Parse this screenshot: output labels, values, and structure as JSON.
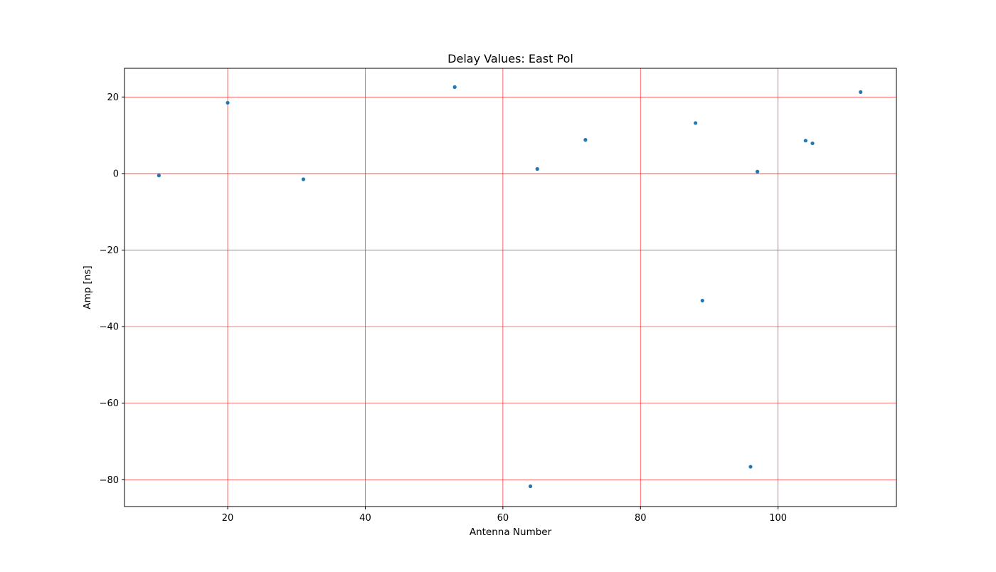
{
  "colors": {
    "marker": "#1f77b4",
    "grid": "#ff0000",
    "axes": "#000000",
    "background": "#ffffff"
  },
  "chart_data": {
    "type": "scatter",
    "title": "Delay Values: East Pol",
    "xlabel": "Antenna Number",
    "ylabel": "Amp [ns]",
    "xlim": [
      5,
      117.2
    ],
    "ylim": [
      -87,
      27.5
    ],
    "xticks": [
      20,
      40,
      60,
      80,
      100
    ],
    "yticks": [
      20,
      0,
      -20,
      -40,
      -60,
      -80
    ],
    "xtick_labels": [
      "20",
      "40",
      "60",
      "80",
      "100"
    ],
    "ytick_labels": [
      "20",
      "0",
      "−20",
      "−40",
      "−60",
      "−80"
    ],
    "grid": true,
    "points": [
      {
        "x": 10,
        "y": -0.5
      },
      {
        "x": 20,
        "y": 18.5
      },
      {
        "x": 31,
        "y": -1.5
      },
      {
        "x": 53,
        "y": 22.6
      },
      {
        "x": 64,
        "y": -81.7
      },
      {
        "x": 65,
        "y": 1.2
      },
      {
        "x": 72,
        "y": 8.8
      },
      {
        "x": 88,
        "y": 13.2
      },
      {
        "x": 89,
        "y": -33.2
      },
      {
        "x": 96,
        "y": -76.6
      },
      {
        "x": 97,
        "y": 0.5
      },
      {
        "x": 104,
        "y": 8.6
      },
      {
        "x": 105,
        "y": 7.9
      },
      {
        "x": 112,
        "y": 21.3
      }
    ]
  }
}
